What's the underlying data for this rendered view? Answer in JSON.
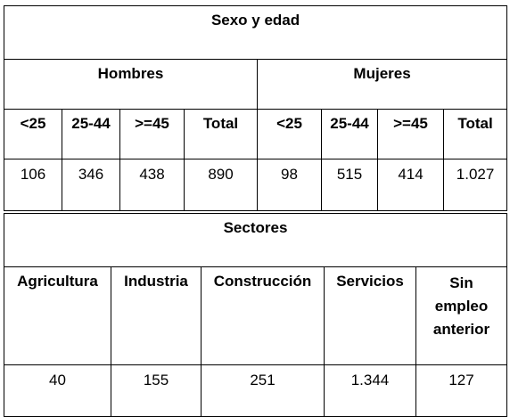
{
  "table1": {
    "title": "Sexo y edad",
    "groups": [
      "Hombres",
      "Mujeres"
    ],
    "columns": [
      "<25",
      "25-44",
      ">=45",
      "Total",
      "<25",
      "25-44",
      ">=45",
      "Total"
    ],
    "values": [
      "106",
      "346",
      "438",
      "890",
      "98",
      "515",
      "414",
      "1.027"
    ]
  },
  "table2": {
    "title": "Sectores",
    "columns": [
      "Agricultura",
      "Industria",
      "Construcción",
      "Servicios",
      "Sin empleo anterior"
    ],
    "values": [
      "40",
      "155",
      "251",
      "1.344",
      "127"
    ]
  }
}
